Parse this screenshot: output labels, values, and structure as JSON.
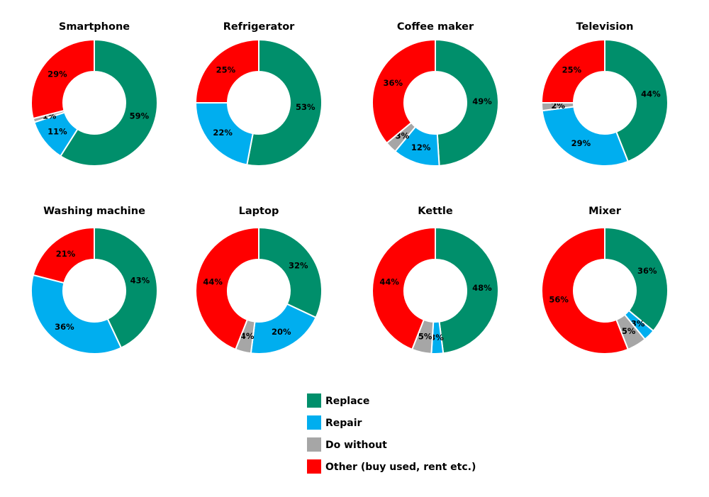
{
  "colors": {
    "Replace": "#008f6b",
    "Repair": "#00aeef",
    "Do without": "#a6a6a6",
    "Other (buy used, rent etc.)": "#ff0000"
  },
  "legend": [
    "Replace",
    "Repair",
    "Do without",
    "Other (buy used, rent etc.)"
  ],
  "chart_data": [
    {
      "type": "pie",
      "title": "Smartphone",
      "series": [
        {
          "name": "Replace",
          "value": 59,
          "label": "59%"
        },
        {
          "name": "Repair",
          "value": 11,
          "label": "11%"
        },
        {
          "name": "Do without",
          "value": 1,
          "label": "1%"
        },
        {
          "name": "Other (buy used, rent etc.)",
          "value": 29,
          "label": "29%"
        }
      ]
    },
    {
      "type": "pie",
      "title": "Refrigerator",
      "series": [
        {
          "name": "Replace",
          "value": 53,
          "label": "53%"
        },
        {
          "name": "Repair",
          "value": 22,
          "label": "22%"
        },
        {
          "name": "Do without",
          "value": 0,
          "label": ""
        },
        {
          "name": "Other (buy used, rent etc.)",
          "value": 25,
          "label": "25%"
        }
      ]
    },
    {
      "type": "pie",
      "title": "Coffee maker",
      "series": [
        {
          "name": "Replace",
          "value": 49,
          "label": "49%"
        },
        {
          "name": "Repair",
          "value": 12,
          "label": "12%"
        },
        {
          "name": "Do without",
          "value": 3,
          "label": "3%"
        },
        {
          "name": "Other (buy used, rent etc.)",
          "value": 36,
          "label": "36%"
        }
      ]
    },
    {
      "type": "pie",
      "title": "Television",
      "series": [
        {
          "name": "Replace",
          "value": 44,
          "label": "44%"
        },
        {
          "name": "Repair",
          "value": 29,
          "label": "29%"
        },
        {
          "name": "Do without",
          "value": 2,
          "label": "2%"
        },
        {
          "name": "Other (buy used, rent etc.)",
          "value": 25,
          "label": "25%"
        }
      ]
    },
    {
      "type": "pie",
      "title": "Washing machine",
      "series": [
        {
          "name": "Replace",
          "value": 43,
          "label": "43%"
        },
        {
          "name": "Repair",
          "value": 36,
          "label": "36%"
        },
        {
          "name": "Do without",
          "value": 0,
          "label": ""
        },
        {
          "name": "Other (buy used, rent etc.)",
          "value": 21,
          "label": "21%"
        }
      ]
    },
    {
      "type": "pie",
      "title": "Laptop",
      "series": [
        {
          "name": "Replace",
          "value": 32,
          "label": "32%"
        },
        {
          "name": "Repair",
          "value": 20,
          "label": "20%"
        },
        {
          "name": "Do without",
          "value": 4,
          "label": "4%"
        },
        {
          "name": "Other (buy used, rent etc.)",
          "value": 44,
          "label": "44%"
        }
      ]
    },
    {
      "type": "pie",
      "title": "Kettle",
      "series": [
        {
          "name": "Replace",
          "value": 48,
          "label": "48%"
        },
        {
          "name": "Repair",
          "value": 3,
          "label": "3%"
        },
        {
          "name": "Do without",
          "value": 5,
          "label": "5%"
        },
        {
          "name": "Other (buy used, rent etc.)",
          "value": 44,
          "label": "44%"
        }
      ]
    },
    {
      "type": "pie",
      "title": "Mixer",
      "series": [
        {
          "name": "Replace",
          "value": 36,
          "label": "36%"
        },
        {
          "name": "Repair",
          "value": 3,
          "label": "3%"
        },
        {
          "name": "Do without",
          "value": 5,
          "label": "5%"
        },
        {
          "name": "Other (buy used, rent etc.)",
          "value": 56,
          "label": "56%"
        }
      ]
    }
  ]
}
